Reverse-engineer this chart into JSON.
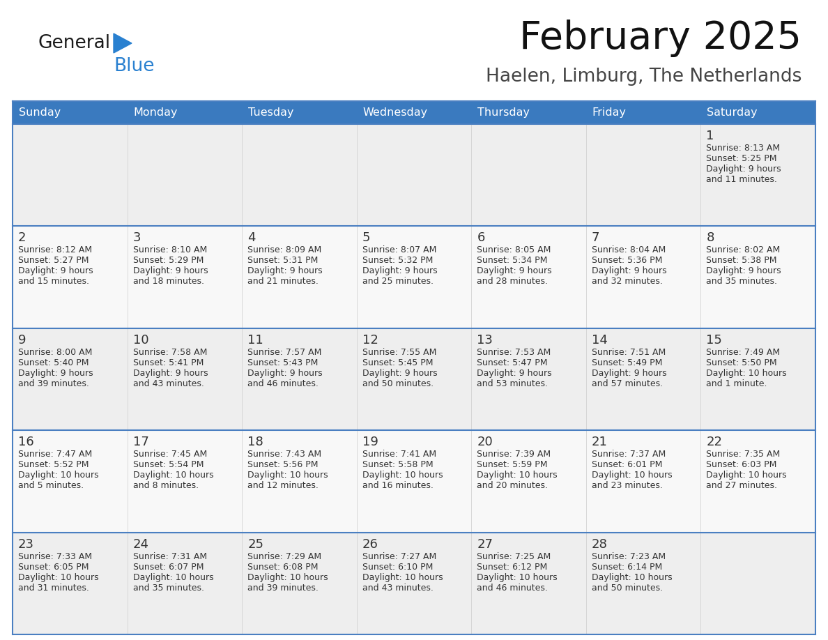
{
  "title": "February 2025",
  "subtitle": "Haelen, Limburg, The Netherlands",
  "header_bg": "#3a7abf",
  "header_text": "#ffffff",
  "cell_bg_odd": "#eeeeee",
  "cell_bg_even": "#f8f8f8",
  "border_color": "#4a7fc1",
  "text_color": "#333333",
  "day_headers": [
    "Sunday",
    "Monday",
    "Tuesday",
    "Wednesday",
    "Thursday",
    "Friday",
    "Saturday"
  ],
  "weeks": [
    [
      {
        "day": "",
        "info": ""
      },
      {
        "day": "",
        "info": ""
      },
      {
        "day": "",
        "info": ""
      },
      {
        "day": "",
        "info": ""
      },
      {
        "day": "",
        "info": ""
      },
      {
        "day": "",
        "info": ""
      },
      {
        "day": "1",
        "info": "Sunrise: 8:13 AM\nSunset: 5:25 PM\nDaylight: 9 hours\nand 11 minutes."
      }
    ],
    [
      {
        "day": "2",
        "info": "Sunrise: 8:12 AM\nSunset: 5:27 PM\nDaylight: 9 hours\nand 15 minutes."
      },
      {
        "day": "3",
        "info": "Sunrise: 8:10 AM\nSunset: 5:29 PM\nDaylight: 9 hours\nand 18 minutes."
      },
      {
        "day": "4",
        "info": "Sunrise: 8:09 AM\nSunset: 5:31 PM\nDaylight: 9 hours\nand 21 minutes."
      },
      {
        "day": "5",
        "info": "Sunrise: 8:07 AM\nSunset: 5:32 PM\nDaylight: 9 hours\nand 25 minutes."
      },
      {
        "day": "6",
        "info": "Sunrise: 8:05 AM\nSunset: 5:34 PM\nDaylight: 9 hours\nand 28 minutes."
      },
      {
        "day": "7",
        "info": "Sunrise: 8:04 AM\nSunset: 5:36 PM\nDaylight: 9 hours\nand 32 minutes."
      },
      {
        "day": "8",
        "info": "Sunrise: 8:02 AM\nSunset: 5:38 PM\nDaylight: 9 hours\nand 35 minutes."
      }
    ],
    [
      {
        "day": "9",
        "info": "Sunrise: 8:00 AM\nSunset: 5:40 PM\nDaylight: 9 hours\nand 39 minutes."
      },
      {
        "day": "10",
        "info": "Sunrise: 7:58 AM\nSunset: 5:41 PM\nDaylight: 9 hours\nand 43 minutes."
      },
      {
        "day": "11",
        "info": "Sunrise: 7:57 AM\nSunset: 5:43 PM\nDaylight: 9 hours\nand 46 minutes."
      },
      {
        "day": "12",
        "info": "Sunrise: 7:55 AM\nSunset: 5:45 PM\nDaylight: 9 hours\nand 50 minutes."
      },
      {
        "day": "13",
        "info": "Sunrise: 7:53 AM\nSunset: 5:47 PM\nDaylight: 9 hours\nand 53 minutes."
      },
      {
        "day": "14",
        "info": "Sunrise: 7:51 AM\nSunset: 5:49 PM\nDaylight: 9 hours\nand 57 minutes."
      },
      {
        "day": "15",
        "info": "Sunrise: 7:49 AM\nSunset: 5:50 PM\nDaylight: 10 hours\nand 1 minute."
      }
    ],
    [
      {
        "day": "16",
        "info": "Sunrise: 7:47 AM\nSunset: 5:52 PM\nDaylight: 10 hours\nand 5 minutes."
      },
      {
        "day": "17",
        "info": "Sunrise: 7:45 AM\nSunset: 5:54 PM\nDaylight: 10 hours\nand 8 minutes."
      },
      {
        "day": "18",
        "info": "Sunrise: 7:43 AM\nSunset: 5:56 PM\nDaylight: 10 hours\nand 12 minutes."
      },
      {
        "day": "19",
        "info": "Sunrise: 7:41 AM\nSunset: 5:58 PM\nDaylight: 10 hours\nand 16 minutes."
      },
      {
        "day": "20",
        "info": "Sunrise: 7:39 AM\nSunset: 5:59 PM\nDaylight: 10 hours\nand 20 minutes."
      },
      {
        "day": "21",
        "info": "Sunrise: 7:37 AM\nSunset: 6:01 PM\nDaylight: 10 hours\nand 23 minutes."
      },
      {
        "day": "22",
        "info": "Sunrise: 7:35 AM\nSunset: 6:03 PM\nDaylight: 10 hours\nand 27 minutes."
      }
    ],
    [
      {
        "day": "23",
        "info": "Sunrise: 7:33 AM\nSunset: 6:05 PM\nDaylight: 10 hours\nand 31 minutes."
      },
      {
        "day": "24",
        "info": "Sunrise: 7:31 AM\nSunset: 6:07 PM\nDaylight: 10 hours\nand 35 minutes."
      },
      {
        "day": "25",
        "info": "Sunrise: 7:29 AM\nSunset: 6:08 PM\nDaylight: 10 hours\nand 39 minutes."
      },
      {
        "day": "26",
        "info": "Sunrise: 7:27 AM\nSunset: 6:10 PM\nDaylight: 10 hours\nand 43 minutes."
      },
      {
        "day": "27",
        "info": "Sunrise: 7:25 AM\nSunset: 6:12 PM\nDaylight: 10 hours\nand 46 minutes."
      },
      {
        "day": "28",
        "info": "Sunrise: 7:23 AM\nSunset: 6:14 PM\nDaylight: 10 hours\nand 50 minutes."
      },
      {
        "day": "",
        "info": ""
      }
    ]
  ],
  "logo_general_color": "#1a1a1a",
  "logo_blue_color": "#2980d0",
  "logo_triangle_color": "#2980d0"
}
